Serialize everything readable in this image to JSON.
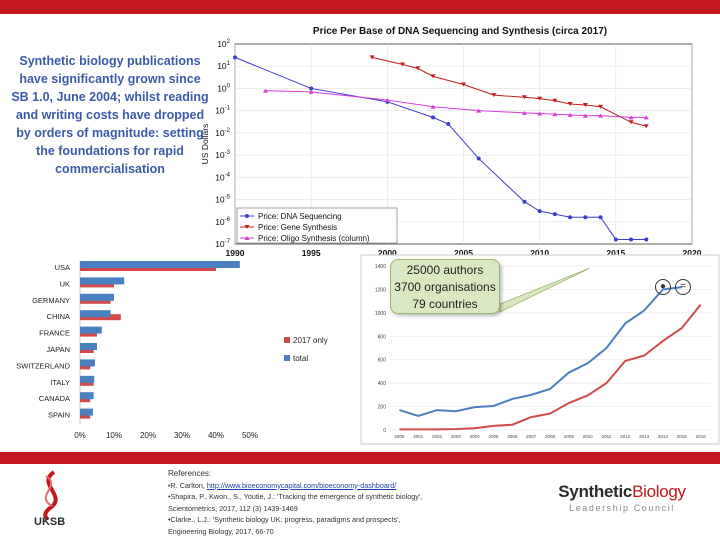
{
  "headline": "Synthetic biology publications have significantly grown since SB 1.0, June 2004; whilst reading and writing costs have dropped by orders of magnitude:  setting the foundations for rapid commercialisation",
  "callout": {
    "authors": "25000 authors",
    "orgs": "3700 organisations",
    "countries": "79 countries"
  },
  "references": {
    "heading": "References:",
    "r1_prefix": "•R. Carlton, ",
    "r1_link": "http://www.bioeconomycapital.com/bioeconomy-dashboard/",
    "r2a": "•Shapira, P., Kwon., S., Youtie, J.: 'Tracking the emergence of synthetic biology',",
    "r2b": "Scientometrics, 2017, 112 (3) 1439-1469",
    "r3a": "•Clarke., L.J.: 'Synthetic biology UK: progress, paradigms and prospects',",
    "r3b": "Engineering Biology, 2017, 66-70"
  },
  "logos": {
    "left": "UKSB",
    "right_a": "Synthetic",
    "right_b": "Biology",
    "right_tag": "Leadership Council"
  },
  "colors": {
    "accent": "#c0181d",
    "headline": "#3b5ba9",
    "seq": "#3b3bd1",
    "gene": "#c41e1e",
    "oligo": "#d63bd6",
    "total": "#4a80c0",
    "only2017": "#d14a4a"
  },
  "chart_data": [
    {
      "type": "line",
      "title": "Price Per Base of DNA Sequencing and Synthesis (circa 2017)",
      "ylabel": "US Dollars",
      "y_scale": "log",
      "xlim": [
        1990,
        2020
      ],
      "ylim": [
        1e-07,
        100
      ],
      "x_ticks": [
        "1990",
        "1995",
        "2000",
        "2005",
        "2010",
        "2015",
        "2020"
      ],
      "y_exponents": [
        -7,
        -6,
        -5,
        -4,
        -3,
        -2,
        -1,
        0,
        1,
        2
      ],
      "legend_position": "bottom-left",
      "series": [
        {
          "name": "Price: DNA Sequencing",
          "x": [
            1990,
            1995,
            2000,
            2003,
            2004,
            2006,
            2009,
            2010,
            2011,
            2012,
            2013,
            2014,
            2015,
            2016,
            2017
          ],
          "y": [
            25,
            1,
            0.25,
            0.05,
            0.025,
            0.0007,
            8e-06,
            3e-06,
            2.2e-06,
            1.6e-06,
            1.6e-06,
            1.6e-06,
            1.6e-07,
            1.6e-07,
            1.6e-07
          ]
        },
        {
          "name": "Price: Gene Synthesis",
          "x": [
            1999,
            2001,
            2002,
            2003,
            2005,
            2007,
            2009,
            2010,
            2011,
            2012,
            2013,
            2014,
            2016,
            2017
          ],
          "y": [
            25,
            12,
            8,
            3.5,
            1.5,
            0.5,
            0.4,
            0.35,
            0.28,
            0.2,
            0.18,
            0.15,
            0.03,
            0.02
          ]
        },
        {
          "name": "Price: Oligo Synthesis (column)",
          "x": [
            1992,
            1995,
            2000,
            2003,
            2006,
            2009,
            2010,
            2011,
            2012,
            2013,
            2014,
            2016,
            2017
          ],
          "y": [
            0.8,
            0.7,
            0.3,
            0.15,
            0.1,
            0.08,
            0.075,
            0.07,
            0.065,
            0.06,
            0.06,
            0.05,
            0.05
          ]
        }
      ]
    },
    {
      "type": "bar",
      "orientation": "horizontal",
      "categories": [
        "USA",
        "UK",
        "GERMANY",
        "CHINA",
        "FRANCE",
        "JAPAN",
        "SWITZERLAND",
        "ITALY",
        "CANADA",
        "SPAIN"
      ],
      "x_ticks": [
        "0%",
        "10%",
        "20%",
        "30%",
        "40%",
        "50%"
      ],
      "xlim": [
        0,
        0.5
      ],
      "legend_position": "right",
      "series": [
        {
          "name": "2017 only",
          "values": [
            0.4,
            0.1,
            0.09,
            0.12,
            0.05,
            0.04,
            0.03,
            0.04,
            0.03,
            0.03
          ]
        },
        {
          "name": "total",
          "values": [
            0.47,
            0.13,
            0.1,
            0.09,
            0.064,
            0.05,
            0.044,
            0.042,
            0.04,
            0.038
          ]
        }
      ]
    },
    {
      "type": "line",
      "categories": [
        "2000",
        "2001",
        "2002",
        "2003",
        "2004",
        "2005",
        "2006",
        "2007",
        "2008",
        "2009",
        "2010",
        "2011",
        "2012",
        "2013",
        "2014",
        "2015",
        "2016"
      ],
      "ylim": [
        0,
        1400
      ],
      "y_ticks": [
        "0",
        "200",
        "400",
        "600",
        "800",
        "1000",
        "1200",
        "1400"
      ],
      "series": [
        {
          "name": "blue",
          "values": [
            170,
            120,
            170,
            160,
            195,
            205,
            265,
            300,
            350,
            490,
            570,
            700,
            910,
            1020,
            1200,
            1220,
            null
          ]
        },
        {
          "name": "red",
          "values": [
            5,
            5,
            5,
            8,
            15,
            35,
            45,
            110,
            140,
            230,
            295,
            400,
            590,
            635,
            760,
            870,
            1070
          ]
        }
      ]
    }
  ]
}
